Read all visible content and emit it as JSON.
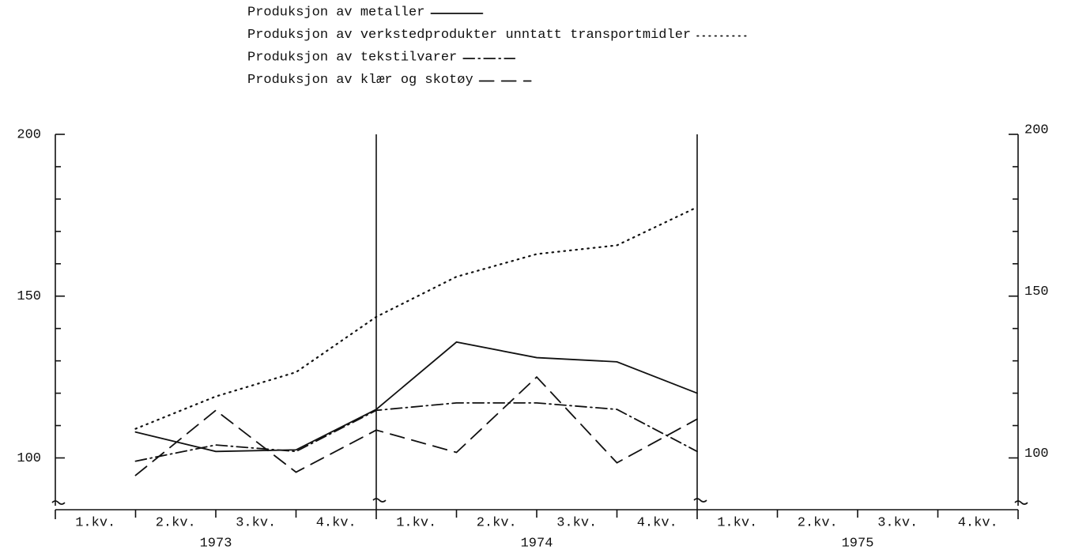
{
  "chart_data": {
    "type": "line",
    "legend": [
      "Produksjon av metaller",
      "Produksjon av verkstedprodukter unntatt transportmidler",
      "Produksjon av tekstilvarer",
      "Produksjon av klær og skotøy"
    ],
    "categories": [
      "1.kv.",
      "2.kv.",
      "3.kv.",
      "4.kv.",
      "1.kv.",
      "2.kv.",
      "3.kv.",
      "4.kv.",
      "1.kv.",
      "2.kv.",
      "3.kv.",
      "4.kv."
    ],
    "years": [
      "1973",
      "1974",
      "1975"
    ],
    "series": [
      {
        "name": "Produksjon av metaller",
        "color": "#111111",
        "dash": "solid",
        "values": [
          108,
          102,
          102.5,
          115,
          135.8,
          131,
          129.7,
          120,
          null,
          null,
          null,
          null
        ]
      },
      {
        "name": "Produksjon av verkstedprodukter unntatt transportmidler",
        "color": "#111111",
        "dash": "dotted",
        "values": [
          109,
          119,
          126.5,
          143.6,
          156,
          163,
          165.7,
          177.5,
          null,
          null,
          null,
          null
        ]
      },
      {
        "name": "Produksjon av tekstilvarer",
        "color": "#111111",
        "dash": "dashdot",
        "values": [
          99,
          104,
          102,
          114.7,
          117,
          117,
          115,
          102,
          null,
          null,
          null,
          null
        ]
      },
      {
        "name": "Produksjon av klær og skotøy",
        "color": "#111111",
        "dash": "dashed",
        "values": [
          94.6,
          114.7,
          95.6,
          108.6,
          101.7,
          125,
          98.5,
          112,
          null,
          null,
          null,
          null
        ]
      }
    ],
    "ylim": [
      84,
      200
    ],
    "yticks": [
      100,
      150,
      200
    ],
    "minor_yticks": [
      110,
      120,
      130,
      140,
      160,
      170,
      180,
      190
    ]
  }
}
